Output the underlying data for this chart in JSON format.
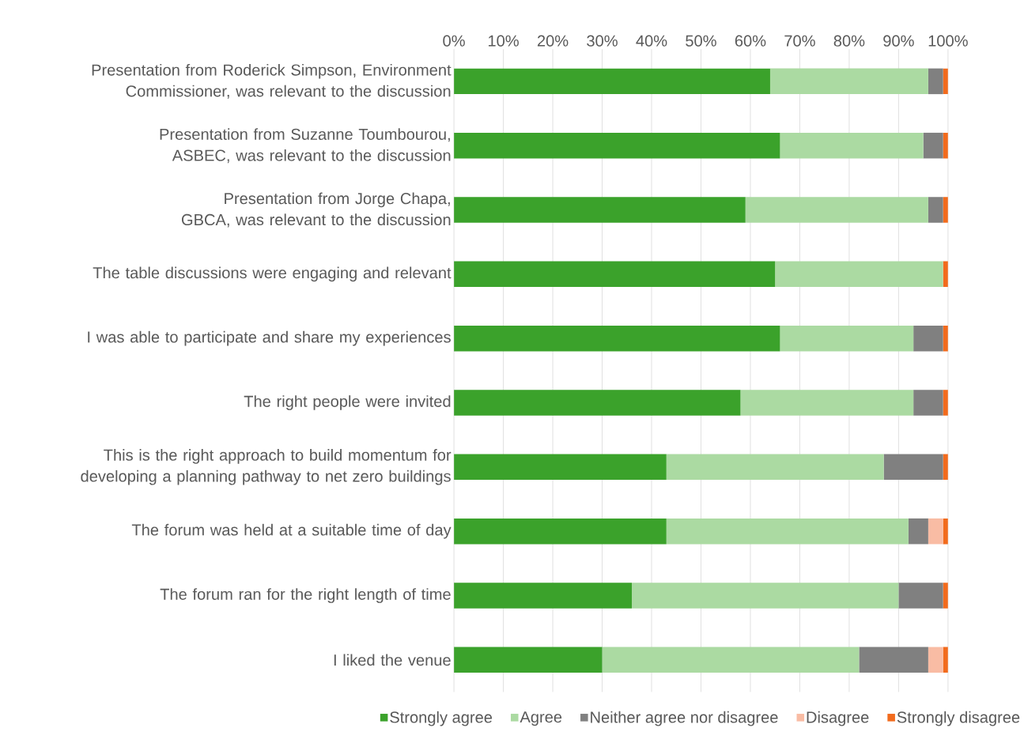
{
  "chart_data": {
    "type": "bar",
    "orientation": "horizontal",
    "stacked": true,
    "categories": [
      "Presentation from Roderick Simpson, Environment Commissioner, was relevant to the discussion",
      "Presentation from Suzanne Toumbourou, ASBEC, was relevant to the discussion",
      "Presentation from Jorge Chapa, GBCA, was relevant to the discussion",
      "The table discussions were engaging and relevant",
      "I was able to participate and share my experiences",
      "The right people were invited",
      "This is the right approach to build momentum for developing a planning pathway to net zero buildings",
      "The forum was held at a suitable time of day",
      "The forum ran for the right length of time",
      "I liked the venue"
    ],
    "series": [
      {
        "name": "Strongly agree",
        "color": "#3ba22b",
        "values": [
          64,
          66,
          59,
          65,
          66,
          58,
          43,
          43,
          36,
          30
        ]
      },
      {
        "name": "Agree",
        "color": "#abdaa2",
        "values": [
          32,
          29,
          37,
          34,
          27,
          35,
          44,
          49,
          54,
          52
        ]
      },
      {
        "name": "Neither agree nor disagree",
        "color": "#808080",
        "values": [
          3,
          4,
          3,
          0,
          6,
          6,
          12,
          4,
          9,
          14
        ]
      },
      {
        "name": "Disagree",
        "color": "#f9bca4",
        "values": [
          0,
          0,
          0,
          0,
          0,
          0,
          0,
          3,
          0,
          3
        ]
      },
      {
        "name": "Strongly disagree",
        "color": "#f26b1d",
        "values": [
          1,
          1,
          1,
          1,
          1,
          1,
          1,
          1,
          1,
          1
        ]
      }
    ],
    "xlim": [
      0,
      100
    ],
    "xticks": [
      {
        "value": 0,
        "label": "0%"
      },
      {
        "value": 10,
        "label": "10%"
      },
      {
        "value": 20,
        "label": "20%"
      },
      {
        "value": 30,
        "label": "30%"
      },
      {
        "value": 40,
        "label": "40%"
      },
      {
        "value": 50,
        "label": "50%"
      },
      {
        "value": 60,
        "label": "60%"
      },
      {
        "value": 70,
        "label": "70%"
      },
      {
        "value": 80,
        "label": "80%"
      },
      {
        "value": 90,
        "label": "90%"
      },
      {
        "value": 100,
        "label": "100%"
      }
    ],
    "grid": "x",
    "legend": "bottom"
  }
}
